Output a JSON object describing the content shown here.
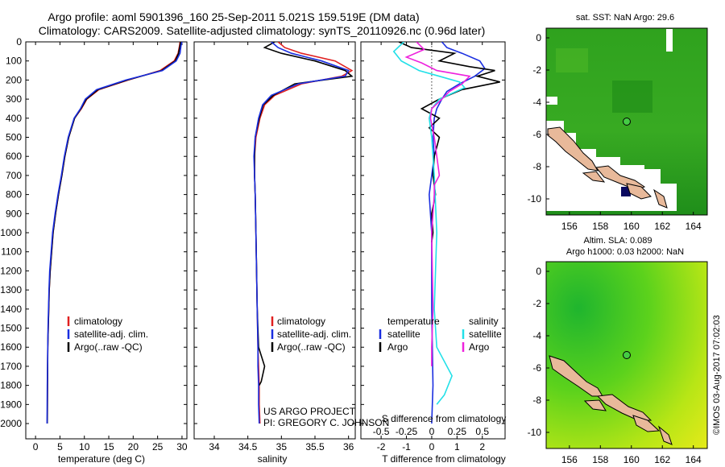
{
  "header": {
    "title_line1": "Argo profile: aoml 5901396_160 25-Sep-2011 5.021S 159.519E (DM data)",
    "title_line2": "Climatology: CARS2009. Satellite-adjusted climatology: synTS_20110926.nc (0.96d later)"
  },
  "colors": {
    "climatology": "#e02020",
    "satellite": "#1a2ee0",
    "argo": "#000000",
    "sal_satellite": "#22e0e8",
    "sal_argo": "#ee22dd"
  },
  "depth_axis": {
    "ticks": [
      "0",
      "100",
      "200",
      "300",
      "400",
      "500",
      "600",
      "700",
      "800",
      "900",
      "1000",
      "1100",
      "1200",
      "1300",
      "1400",
      "1500",
      "1600",
      "1700",
      "1800",
      "1900",
      "2000"
    ]
  },
  "chart_data": [
    {
      "type": "line",
      "name": "temperature",
      "xlabel": "temperature (deg C)",
      "xlim": [
        -2,
        31
      ],
      "ylim": [
        2080,
        0
      ],
      "xticks": [
        "0",
        "5",
        "10",
        "15",
        "20",
        "25",
        "30"
      ],
      "legend": [
        "climatology",
        "satellite-adj. clim.",
        "Argo(..raw -QC)"
      ],
      "legend_position": "lower-center",
      "series": [
        {
          "name": "climatology",
          "color": "climatology",
          "x": [
            29.6,
            29.5,
            29.2,
            28.4,
            25.5,
            19.0,
            13.0,
            10.5,
            9.4,
            8.0,
            6.8,
            6.0,
            5.4,
            4.7,
            4.1,
            3.6,
            3.3,
            3.0,
            2.8,
            2.7,
            2.6,
            2.5,
            2.45,
            2.4
          ],
          "y": [
            0,
            20,
            60,
            100,
            150,
            200,
            250,
            300,
            350,
            400,
            500,
            600,
            700,
            800,
            900,
            1000,
            1100,
            1200,
            1300,
            1400,
            1500,
            1600,
            1800,
            2000
          ]
        },
        {
          "name": "satellite",
          "color": "satellite",
          "x": [
            30.0,
            29.8,
            29.6,
            28.8,
            26.0,
            18.5,
            12.5,
            10.2,
            9.2,
            7.9,
            6.7,
            5.9,
            5.3,
            4.6,
            4.0,
            3.5,
            3.2,
            2.9,
            2.75,
            2.65,
            2.55,
            2.5,
            2.4,
            2.35
          ],
          "y": [
            0,
            20,
            60,
            100,
            150,
            200,
            250,
            300,
            350,
            400,
            500,
            600,
            700,
            800,
            900,
            1000,
            1100,
            1200,
            1300,
            1400,
            1500,
            1600,
            1800,
            2000
          ]
        },
        {
          "name": "argo",
          "color": "argo",
          "x": [
            29.7,
            29.6,
            29.3,
            28.6,
            25.8,
            18.8,
            12.8,
            10.4,
            9.3,
            8.0,
            6.8,
            6.0,
            5.4,
            4.7,
            4.1,
            3.6,
            3.3,
            3.0,
            2.8,
            2.7,
            2.6,
            2.5,
            2.45,
            2.4
          ],
          "y": [
            0,
            20,
            60,
            100,
            150,
            200,
            250,
            300,
            350,
            400,
            500,
            600,
            700,
            800,
            900,
            1000,
            1100,
            1200,
            1300,
            1400,
            1500,
            1600,
            1800,
            2000
          ]
        }
      ]
    },
    {
      "type": "line",
      "name": "salinity",
      "xlabel": "salinity",
      "xlim": [
        33.7,
        36.1
      ],
      "ylim": [
        2080,
        0
      ],
      "xticks": [
        "34",
        "34.5",
        "35",
        "35.5",
        "36"
      ],
      "legend": [
        "climatology",
        "satellite-adj. clim.",
        "Argo(..raw -QC)"
      ],
      "legend_position": "lower-right",
      "annotations": [
        "US ARGO PROJECT",
        "PI: GREGORY C. JOHNSON"
      ],
      "series": [
        {
          "name": "climatology",
          "color": "climatology",
          "x": [
            34.95,
            35.05,
            35.3,
            35.8,
            36.05,
            35.9,
            35.3,
            34.9,
            34.75,
            34.68,
            34.62,
            34.6,
            34.6,
            34.61,
            34.62,
            34.63,
            34.64,
            34.65,
            34.66,
            34.67,
            34.67,
            34.68
          ],
          "y": [
            0,
            30,
            60,
            100,
            150,
            180,
            220,
            280,
            330,
            400,
            500,
            600,
            700,
            800,
            1000,
            1200,
            1400,
            1600,
            1700,
            1800,
            1900,
            2000
          ]
        },
        {
          "name": "satellite",
          "color": "satellite",
          "x": [
            34.85,
            34.95,
            35.15,
            35.6,
            36.0,
            35.95,
            35.25,
            34.85,
            34.72,
            34.66,
            34.61,
            34.59,
            34.6,
            34.61,
            34.62,
            34.63,
            34.64,
            34.65,
            34.65,
            34.66,
            34.66,
            34.67
          ],
          "y": [
            0,
            30,
            60,
            100,
            150,
            180,
            220,
            280,
            330,
            400,
            500,
            600,
            700,
            800,
            1000,
            1200,
            1400,
            1600,
            1700,
            1800,
            1900,
            2000
          ]
        },
        {
          "name": "argo",
          "color": "argo",
          "x": [
            34.9,
            34.75,
            35.0,
            35.5,
            35.95,
            36.05,
            35.2,
            34.88,
            34.73,
            34.67,
            34.61,
            34.6,
            34.6,
            34.61,
            34.62,
            34.63,
            34.64,
            34.66,
            34.75,
            34.7,
            34.67
          ],
          "y": [
            0,
            30,
            60,
            100,
            150,
            180,
            220,
            280,
            330,
            400,
            500,
            600,
            700,
            800,
            1000,
            1200,
            1400,
            1600,
            1700,
            1780,
            1800
          ]
        }
      ]
    },
    {
      "type": "line",
      "name": "difference-from-climatology",
      "xlabel": "T difference from climatology",
      "xlabel_top": "S difference from climatology",
      "xlim": [
        -2.8,
        2.9
      ],
      "ylim": [
        2080,
        0
      ],
      "xticks_T": [
        "-2",
        "-1",
        "0",
        "1",
        "2"
      ],
      "xticks_S": [
        "-0.5",
        "-0.25",
        "0",
        "0.25",
        "0.5"
      ],
      "legend_temperature": {
        "title": "temperature",
        "items": [
          "satellite",
          "Argo"
        ]
      },
      "legend_salinity": {
        "title": "salinity",
        "items": [
          "satellite",
          "Argo"
        ]
      },
      "series": [
        {
          "name": "temperature satellite",
          "color": "satellite",
          "x": [
            0.4,
            0.6,
            1.2,
            1.9,
            2.1,
            1.7,
            1.1,
            0.6,
            0.4,
            0.2,
            0.1,
            0.05,
            0.1,
            0.0,
            -0.1,
            0.0,
            0.0,
            0.05,
            0.0
          ],
          "y": [
            0,
            30,
            60,
            100,
            140,
            180,
            220,
            260,
            300,
            350,
            400,
            500,
            600,
            700,
            800,
            1000,
            1400,
            1800,
            2000
          ]
        },
        {
          "name": "temperature argo",
          "color": "argo",
          "x": [
            -1.3,
            -0.8,
            0.9,
            0.3,
            1.5,
            2.5,
            1.8,
            2.7,
            1.2,
            0.3,
            -0.4,
            0.3,
            -0.1,
            0.3,
            0.1,
            0.05,
            0.15,
            0.0,
            0.05,
            0.0
          ],
          "y": [
            0,
            30,
            60,
            100,
            130,
            150,
            180,
            210,
            250,
            300,
            350,
            400,
            450,
            500,
            600,
            700,
            800,
            900,
            1000,
            1050
          ]
        },
        {
          "name": "salinity satellite",
          "color": "sal_satellite",
          "x": [
            -1.1,
            -1.5,
            -1.2,
            -0.5,
            0.3,
            1.1,
            1.3,
            0.8,
            0.3,
            0.0,
            -0.1,
            0.0,
            0.1,
            0.2,
            0.1,
            0.2,
            0.8,
            0.5,
            0.2
          ],
          "y": [
            0,
            50,
            100,
            150,
            180,
            210,
            240,
            270,
            300,
            350,
            400,
            500,
            700,
            1000,
            1400,
            1600,
            1750,
            1850,
            1900
          ]
        },
        {
          "name": "salinity argo",
          "color": "sal_argo",
          "x": [
            -0.6,
            -0.3,
            -1.0,
            -0.4,
            0.2,
            1.5,
            1.2,
            0.7,
            0.4,
            0.0,
            -0.05,
            0.1,
            0.3,
            0.1,
            0.1,
            0.0,
            0.05,
            0.0,
            0.0
          ],
          "y": [
            0,
            40,
            80,
            110,
            150,
            180,
            220,
            260,
            300,
            350,
            400,
            500,
            700,
            750,
            800,
            1000,
            1400,
            1600,
            1700
          ]
        }
      ]
    }
  ],
  "maps": {
    "sst": {
      "title": "sat. SST: NaN Argo: 29.6",
      "xticks": [
        "156",
        "158",
        "160",
        "162",
        "164"
      ],
      "yticks": [
        "0",
        "-2",
        "-4",
        "-6",
        "-8",
        "-10"
      ]
    },
    "sla": {
      "title1": "Altim. SLA: 0.089",
      "title2": "Argo h1000: 0.03 h2000: NaN",
      "xticks": [
        "156",
        "158",
        "160",
        "162",
        "164"
      ],
      "yticks": [
        "0",
        "-2",
        "-4",
        "-6",
        "-8",
        "-10"
      ]
    }
  },
  "footer": {
    "credit": "©IMOS 03-Aug-2017 07:02:03"
  }
}
